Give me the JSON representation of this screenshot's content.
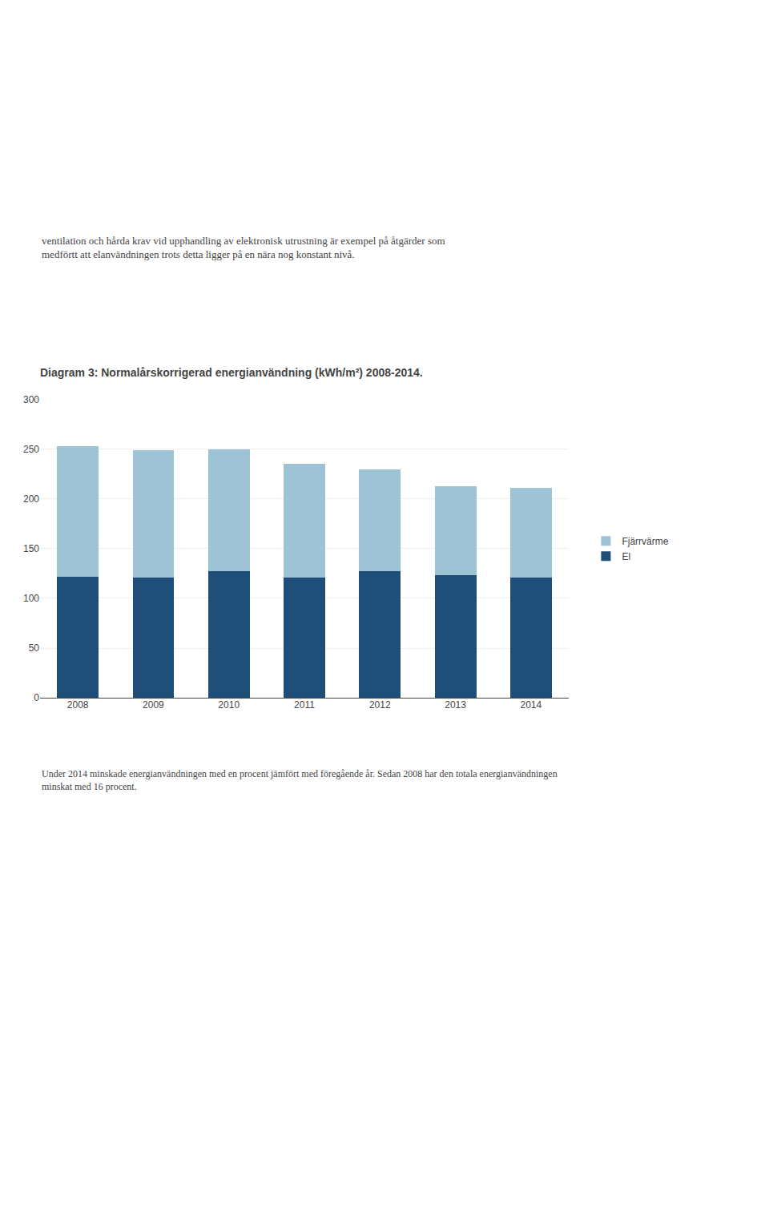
{
  "chart_data": {
    "type": "bar",
    "title": "Diagram 3: Normalårskorrigerad energianvändning (kWh/m²) 2008-2014.",
    "annotations": [
      "ventilation och hårda krav vid upphandling av elektronisk utrustning är exempel på åtgärder som\nmedförtt att elanvändningen trots detta ligger på en nära nog konstant nivå.",
      "Under 2014 minskade energianvändningen med en procent jämfört med föregående år. Sedan 2008 har den totala energianvändningen\nminskat med 16 procent."
    ],
    "categories": [
      "2008",
      "2009",
      "2010",
      "2011",
      "2012",
      "2013",
      "2014"
    ],
    "series": [
      {
        "name": "El",
        "color": "#1F4E79",
        "values": [
          122,
          121,
          127,
          121,
          127,
          123,
          121
        ]
      },
      {
        "name": "Fjärrvärme",
        "color": "#9DC3D4",
        "values": [
          131,
          128,
          123,
          114,
          103,
          90,
          90
        ]
      }
    ],
    "ylim": [
      0,
      300
    ],
    "yticks": [
      0,
      50,
      100,
      150,
      200,
      250,
      300
    ],
    "stacked": true,
    "grid": true,
    "legend": "right"
  }
}
